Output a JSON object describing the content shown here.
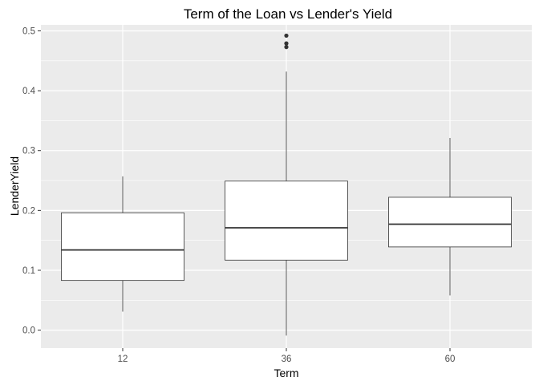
{
  "chart_data": {
    "type": "boxplot",
    "title": "Term of the Loan vs Lender's Yield",
    "xlabel": "Term",
    "ylabel": "LenderYield",
    "categories": [
      "12",
      "36",
      "60"
    ],
    "ylim": [
      -0.03,
      0.51
    ],
    "yticks": [
      "0.0",
      "0.1",
      "0.2",
      "0.3",
      "0.4",
      "0.5"
    ],
    "grid": true,
    "boxes": [
      {
        "category": "12",
        "whisker_low": 0.031,
        "q1": 0.083,
        "median": 0.134,
        "q3": 0.196,
        "whisker_high": 0.257,
        "outliers": []
      },
      {
        "category": "36",
        "whisker_low": -0.009,
        "q1": 0.117,
        "median": 0.171,
        "q3": 0.249,
        "whisker_high": 0.432,
        "outliers": [
          0.473,
          0.479,
          0.492
        ]
      },
      {
        "category": "60",
        "whisker_low": 0.058,
        "q1": 0.139,
        "median": 0.177,
        "q3": 0.222,
        "whisker_high": 0.321,
        "outliers": []
      }
    ],
    "colors": {
      "panel": "#ebebeb",
      "grid": "#ffffff",
      "box_fill": "#ffffff",
      "box_stroke": "#333333",
      "outlier": "#333333"
    }
  }
}
